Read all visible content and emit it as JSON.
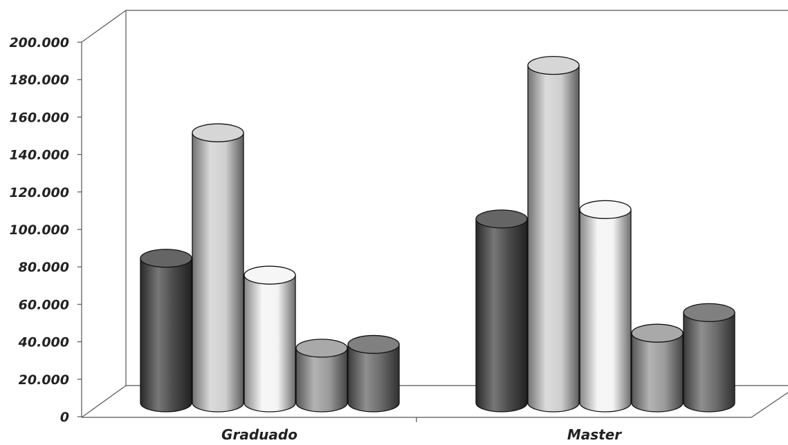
{
  "chart_data": {
    "type": "bar",
    "style": "3d-cylinder",
    "categories": [
      "Graduado",
      "Master"
    ],
    "series": [
      {
        "values": [
          82000,
          103000
        ],
        "color": "#4a4a4a"
      },
      {
        "values": [
          149000,
          185000
        ],
        "color": "#cfcfcf"
      },
      {
        "values": [
          73000,
          108000
        ],
        "color": "#f4f4f4"
      },
      {
        "values": [
          34000,
          42000
        ],
        "color": "#9a9a9a"
      },
      {
        "values": [
          36000,
          53000
        ],
        "color": "#6a6a6a"
      }
    ],
    "ylim": [
      0,
      200000
    ],
    "yticks": [
      0,
      20000,
      40000,
      60000,
      80000,
      100000,
      120000,
      140000,
      160000,
      180000,
      200000
    ],
    "ytick_labels": [
      "0",
      "20.000",
      "40.000",
      "60.000",
      "80.000",
      "100.000",
      "120.000",
      "140.000",
      "160.000",
      "180.000",
      "200.000"
    ],
    "xlabel": "",
    "ylabel": "",
    "title": "",
    "grid": false,
    "legend": "none"
  }
}
